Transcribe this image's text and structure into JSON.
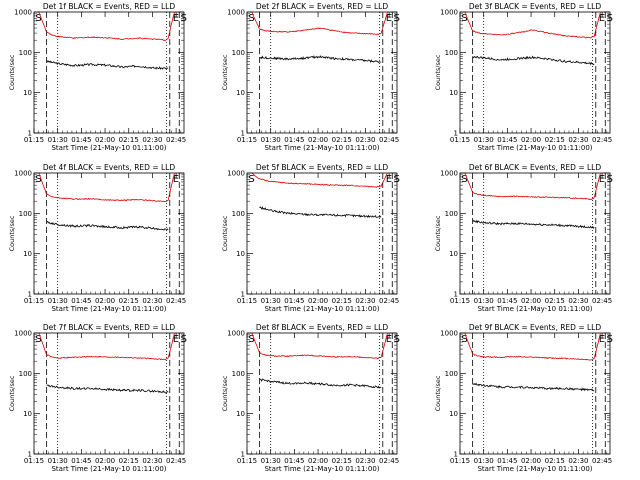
{
  "colors": {
    "events": "#000000",
    "lld": "#e00000",
    "background": "#ffffff"
  },
  "chart_data": [
    {
      "type": "line",
      "title": "Det 1f BLACK = Events, RED = LLD",
      "xlabel": "Start Time (21-May-10 01:11:00)",
      "ylabel": "Counts/sec",
      "x_tick_labels": [
        "01:15",
        "01:30",
        "01:45",
        "02:00",
        "02:15",
        "02:30",
        "02:45"
      ],
      "y_tick_labels": [
        "1",
        "10",
        "100",
        "1000"
      ],
      "yscale": "log",
      "ylim": [
        1,
        1000
      ],
      "x_unit": "minutes since 01:11:00",
      "xlim": [
        4,
        99
      ],
      "markers": [
        {
          "label": "S",
          "x": 5
        },
        {
          "label": "E",
          "x": 92
        },
        {
          "label": "S",
          "x": 97
        }
      ],
      "dashed_lines": [
        12,
        90,
        96
      ],
      "dotted_lines": [
        19,
        88,
        101
      ],
      "series": [
        {
          "name": "Events",
          "x": [
            12,
            20,
            30,
            40,
            50,
            60,
            70,
            80,
            89
          ],
          "values": [
            60,
            52,
            47,
            50,
            48,
            43,
            46,
            41,
            40
          ]
        },
        {
          "name": "LLD",
          "x": [
            7,
            10,
            12,
            16,
            20,
            30,
            40,
            50,
            60,
            70,
            80,
            87,
            89,
            91,
            93
          ],
          "values": [
            1000,
            500,
            320,
            265,
            245,
            225,
            238,
            230,
            212,
            225,
            213,
            200,
            220,
            500,
            1000
          ]
        }
      ]
    },
    {
      "type": "line",
      "title": "Det 2f BLACK = Events, RED = LLD",
      "xlabel": "Start Time (21-May-10 01:11:00)",
      "ylabel": "Counts/sec",
      "x_tick_labels": [
        "01:15",
        "01:30",
        "01:45",
        "02:00",
        "02:15",
        "02:30",
        "02:45"
      ],
      "y_tick_labels": [
        "1",
        "10",
        "100",
        "1000"
      ],
      "yscale": "log",
      "ylim": [
        1,
        1000
      ],
      "x_unit": "minutes since 01:11:00",
      "xlim": [
        4,
        99
      ],
      "markers": [
        {
          "label": "S",
          "x": 5
        },
        {
          "label": "E",
          "x": 92
        },
        {
          "label": "S",
          "x": 97
        }
      ],
      "dashed_lines": [
        12,
        90,
        96
      ],
      "dotted_lines": [
        19,
        88,
        101
      ],
      "series": [
        {
          "name": "Events",
          "x": [
            12,
            20,
            30,
            40,
            50,
            60,
            70,
            80,
            89
          ],
          "values": [
            75,
            72,
            68,
            72,
            78,
            70,
            66,
            62,
            58
          ]
        },
        {
          "name": "LLD",
          "x": [
            7,
            10,
            12,
            16,
            20,
            30,
            40,
            50,
            60,
            70,
            80,
            87,
            89,
            91,
            93
          ],
          "values": [
            1000,
            550,
            380,
            340,
            330,
            320,
            350,
            400,
            340,
            300,
            290,
            280,
            300,
            550,
            1000
          ]
        }
      ]
    },
    {
      "type": "line",
      "title": "Det 3f BLACK = Events, RED = LLD",
      "xlabel": "Start Time (21-May-10 01:11:00)",
      "ylabel": "Counts/sec",
      "x_tick_labels": [
        "01:15",
        "01:30",
        "01:45",
        "02:00",
        "02:15",
        "02:30",
        "02:45"
      ],
      "y_tick_labels": [
        "1",
        "10",
        "100",
        "1000"
      ],
      "yscale": "log",
      "ylim": [
        1,
        1000
      ],
      "x_unit": "minutes since 01:11:00",
      "xlim": [
        4,
        99
      ],
      "markers": [
        {
          "label": "S",
          "x": 5
        },
        {
          "label": "E",
          "x": 92
        },
        {
          "label": "S",
          "x": 97
        }
      ],
      "dashed_lines": [
        12,
        90,
        96
      ],
      "dotted_lines": [
        19,
        88,
        101
      ],
      "series": [
        {
          "name": "Events",
          "x": [
            12,
            20,
            30,
            40,
            50,
            60,
            70,
            80,
            89
          ],
          "values": [
            78,
            72,
            65,
            70,
            75,
            68,
            60,
            56,
            52
          ]
        },
        {
          "name": "LLD",
          "x": [
            7,
            10,
            12,
            16,
            20,
            30,
            40,
            50,
            60,
            70,
            80,
            87,
            89,
            91,
            93
          ],
          "values": [
            1000,
            520,
            340,
            300,
            290,
            270,
            300,
            360,
            300,
            260,
            240,
            230,
            250,
            520,
            1000
          ]
        }
      ]
    },
    {
      "type": "line",
      "title": "Det 4f BLACK = Events, RED = LLD",
      "xlabel": "Start Time (21-May-10 01:11:00)",
      "ylabel": "Counts/sec",
      "x_tick_labels": [
        "01:15",
        "01:30",
        "01:45",
        "02:00",
        "02:15",
        "02:30",
        "02:45"
      ],
      "y_tick_labels": [
        "1",
        "10",
        "100",
        "1000"
      ],
      "yscale": "log",
      "ylim": [
        1,
        1000
      ],
      "x_unit": "minutes since 01:11:00",
      "xlim": [
        4,
        99
      ],
      "markers": [
        {
          "label": "S",
          "x": 5
        },
        {
          "label": "E",
          "x": 92
        }
      ],
      "dashed_lines": [
        12,
        90,
        96
      ],
      "dotted_lines": [
        19,
        88,
        101
      ],
      "series": [
        {
          "name": "Events",
          "x": [
            12,
            20,
            30,
            40,
            50,
            60,
            70,
            80,
            89
          ],
          "values": [
            60,
            52,
            48,
            50,
            46,
            44,
            46,
            42,
            40
          ]
        },
        {
          "name": "LLD",
          "x": [
            7,
            10,
            12,
            16,
            20,
            30,
            40,
            50,
            60,
            70,
            80,
            87,
            89,
            91,
            93
          ],
          "values": [
            1000,
            480,
            300,
            255,
            240,
            225,
            230,
            215,
            210,
            220,
            205,
            195,
            215,
            480,
            1000
          ]
        }
      ]
    },
    {
      "type": "line",
      "title": "Det 5f BLACK = Events, RED = LLD",
      "xlabel": "Start Time (21-May-10 01:11:00)",
      "ylabel": "Counts/sec",
      "x_tick_labels": [
        "01:15",
        "01:30",
        "01:45",
        "02:00",
        "02:15",
        "02:30",
        "02:45"
      ],
      "y_tick_labels": [
        "1",
        "10",
        "100",
        "1000"
      ],
      "yscale": "log",
      "ylim": [
        1,
        1000
      ],
      "x_unit": "minutes since 01:11:00",
      "xlim": [
        4,
        99
      ],
      "markers": [
        {
          "label": "S",
          "x": 5
        },
        {
          "label": "E",
          "x": 92
        },
        {
          "label": "S",
          "x": 97
        }
      ],
      "dashed_lines": [
        90,
        96
      ],
      "dotted_lines": [
        88,
        101
      ],
      "series": [
        {
          "name": "Events",
          "x": [
            12,
            20,
            30,
            40,
            50,
            60,
            70,
            80,
            89
          ],
          "values": [
            140,
            115,
            100,
            95,
            92,
            90,
            88,
            85,
            82
          ]
        },
        {
          "name": "LLD",
          "x": [
            7,
            10,
            12,
            16,
            20,
            30,
            40,
            50,
            60,
            70,
            80,
            87,
            89,
            91,
            93
          ],
          "values": [
            1000,
            800,
            720,
            650,
            610,
            560,
            540,
            520,
            500,
            490,
            470,
            450,
            480,
            700,
            1000
          ]
        }
      ]
    },
    {
      "type": "line",
      "title": "Det 6f BLACK = Events, RED = LLD",
      "xlabel": "Start Time (21-May-10 01:11:00)",
      "ylabel": "Counts/sec",
      "x_tick_labels": [
        "01:15",
        "01:30",
        "01:45",
        "02:00",
        "02:15",
        "02:30",
        "02:45"
      ],
      "y_tick_labels": [
        "1",
        "10",
        "100",
        "1000"
      ],
      "yscale": "log",
      "ylim": [
        1,
        1000
      ],
      "x_unit": "minutes since 01:11:00",
      "xlim": [
        4,
        99
      ],
      "markers": [
        {
          "label": "S",
          "x": 5
        },
        {
          "label": "E",
          "x": 92
        },
        {
          "label": "S",
          "x": 97
        }
      ],
      "dashed_lines": [
        12,
        90,
        96
      ],
      "dotted_lines": [
        19,
        88,
        101
      ],
      "series": [
        {
          "name": "Events",
          "x": [
            12,
            20,
            30,
            40,
            50,
            60,
            70,
            80,
            89
          ],
          "values": [
            65,
            58,
            55,
            56,
            54,
            52,
            50,
            47,
            45
          ]
        },
        {
          "name": "LLD",
          "x": [
            7,
            10,
            12,
            16,
            20,
            30,
            40,
            50,
            60,
            70,
            80,
            87,
            89,
            91,
            93
          ],
          "values": [
            1000,
            520,
            330,
            290,
            275,
            260,
            265,
            255,
            250,
            245,
            235,
            225,
            245,
            520,
            1000
          ]
        }
      ]
    },
    {
      "type": "line",
      "title": "Det 7f BLACK = Events, RED = LLD",
      "xlabel": "Start Time (21-May-10 01:11:00)",
      "ylabel": "Counts/sec",
      "x_tick_labels": [
        "01:15",
        "01:30",
        "01:45",
        "02:00",
        "02:15",
        "02:30",
        "02:45"
      ],
      "y_tick_labels": [
        "1",
        "10",
        "100",
        "1000"
      ],
      "yscale": "log",
      "ylim": [
        1,
        1000
      ],
      "x_unit": "minutes since 01:11:00",
      "xlim": [
        4,
        99
      ],
      "markers": [
        {
          "label": "S",
          "x": 5
        },
        {
          "label": "E",
          "x": 92
        },
        {
          "label": "S",
          "x": 97
        }
      ],
      "dashed_lines": [
        12,
        90,
        96
      ],
      "dotted_lines": [
        19,
        88,
        101
      ],
      "series": [
        {
          "name": "Events",
          "x": [
            12,
            20,
            30,
            40,
            50,
            60,
            70,
            80,
            89
          ],
          "values": [
            50,
            45,
            42,
            42,
            40,
            38,
            38,
            36,
            34
          ]
        },
        {
          "name": "LLD",
          "x": [
            7,
            10,
            12,
            16,
            20,
            30,
            40,
            50,
            60,
            70,
            80,
            87,
            89,
            91,
            93
          ],
          "values": [
            1000,
            480,
            290,
            250,
            240,
            250,
            260,
            255,
            250,
            240,
            230,
            220,
            240,
            480,
            1000
          ]
        }
      ]
    },
    {
      "type": "line",
      "title": "Det 8f BLACK = Events, RED = LLD",
      "xlabel": "Start Time (21-May-10 01:11:00)",
      "ylabel": "Counts/sec",
      "x_tick_labels": [
        "01:15",
        "01:30",
        "01:45",
        "02:00",
        "02:15",
        "02:30",
        "02:45"
      ],
      "y_tick_labels": [
        "1",
        "10",
        "100",
        "1000"
      ],
      "yscale": "log",
      "ylim": [
        1,
        1000
      ],
      "x_unit": "minutes since 01:11:00",
      "xlim": [
        4,
        99
      ],
      "markers": [
        {
          "label": "S",
          "x": 5
        },
        {
          "label": "E",
          "x": 92
        },
        {
          "label": "S",
          "x": 97
        }
      ],
      "dashed_lines": [
        12,
        90,
        96
      ],
      "dotted_lines": [
        19,
        88,
        101
      ],
      "series": [
        {
          "name": "Events",
          "x": [
            12,
            20,
            30,
            40,
            50,
            60,
            70,
            80,
            89
          ],
          "values": [
            70,
            62,
            56,
            58,
            55,
            50,
            52,
            48,
            45
          ]
        },
        {
          "name": "LLD",
          "x": [
            7,
            10,
            12,
            16,
            20,
            30,
            40,
            50,
            60,
            70,
            80,
            87,
            89,
            91,
            93
          ],
          "values": [
            1000,
            500,
            320,
            280,
            270,
            265,
            280,
            270,
            255,
            260,
            245,
            235,
            255,
            500,
            1000
          ]
        }
      ]
    },
    {
      "type": "line",
      "title": "Det 9f BLACK = Events, RED = LLD",
      "xlabel": "Start Time (21-May-10 01:11:00)",
      "ylabel": "Counts/sec",
      "x_tick_labels": [
        "01:15",
        "01:30",
        "01:45",
        "02:00",
        "02:15",
        "02:30",
        "02:45"
      ],
      "y_tick_labels": [
        "1",
        "10",
        "100",
        "1000"
      ],
      "yscale": "log",
      "ylim": [
        1,
        1000
      ],
      "x_unit": "minutes since 01:11:00",
      "xlim": [
        4,
        99
      ],
      "markers": [
        {
          "label": "S",
          "x": 5
        },
        {
          "label": "E",
          "x": 92
        },
        {
          "label": "S",
          "x": 97
        }
      ],
      "dashed_lines": [
        12,
        90,
        96
      ],
      "dotted_lines": [
        19,
        88,
        101
      ],
      "series": [
        {
          "name": "Events",
          "x": [
            12,
            20,
            30,
            40,
            50,
            60,
            70,
            80,
            89
          ],
          "values": [
            55,
            50,
            46,
            46,
            44,
            42,
            42,
            40,
            38
          ]
        },
        {
          "name": "LLD",
          "x": [
            7,
            10,
            12,
            16,
            20,
            30,
            40,
            50,
            60,
            70,
            80,
            87,
            89,
            91,
            93
          ],
          "values": [
            1000,
            480,
            300,
            265,
            255,
            250,
            260,
            250,
            240,
            235,
            225,
            215,
            235,
            480,
            1000
          ]
        }
      ]
    }
  ]
}
